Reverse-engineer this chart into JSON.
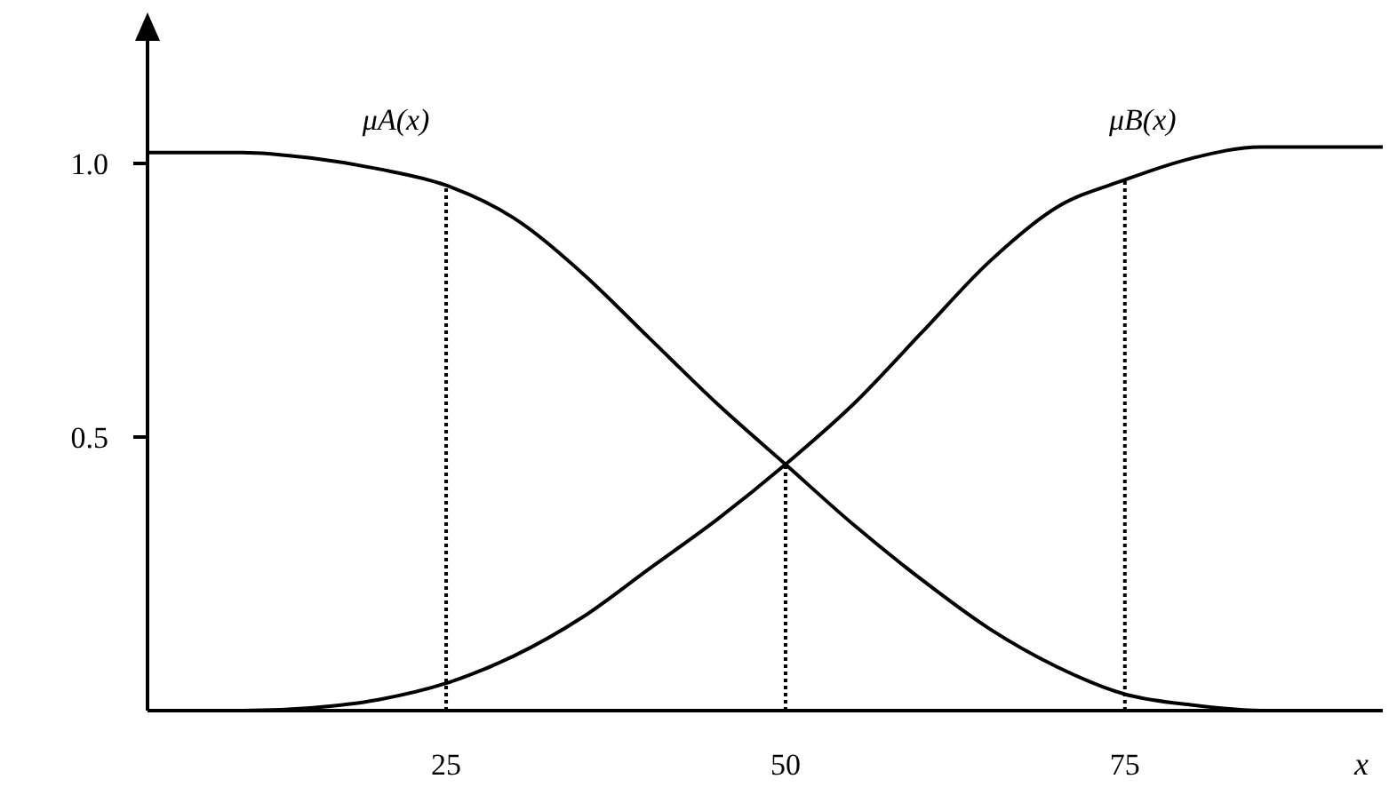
{
  "chart_data": {
    "type": "line",
    "xlabel": "x",
    "x": [
      3,
      10,
      15,
      20,
      25,
      30,
      35,
      40,
      45,
      50,
      55,
      60,
      65,
      70,
      75,
      80,
      85,
      94
    ],
    "series": [
      {
        "name": "μA(x)",
        "color": "#000000",
        "values": [
          1.02,
          1.02,
          1.01,
          0.99,
          0.96,
          0.9,
          0.8,
          0.68,
          0.56,
          0.45,
          0.34,
          0.24,
          0.15,
          0.08,
          0.03,
          0.01,
          0,
          0
        ]
      },
      {
        "name": "μB(x)",
        "color": "#000000",
        "values": [
          0,
          0,
          0.005,
          0.02,
          0.05,
          0.1,
          0.17,
          0.26,
          0.35,
          0.45,
          0.56,
          0.69,
          0.82,
          0.92,
          0.97,
          1.01,
          1.03,
          1.03
        ]
      }
    ],
    "xlim": [
      3,
      94
    ],
    "xticks": [
      25,
      50,
      75
    ],
    "ylim": [
      0,
      1.25
    ],
    "yticks": [
      {
        "value": 0.5,
        "label": "0.5"
      },
      {
        "value": 1,
        "label": "1.0"
      }
    ],
    "ref_lines": [
      {
        "axis": "x",
        "value": 25,
        "line_style": "dotted"
      },
      {
        "axis": "x",
        "value": 50,
        "line_style": "dotted"
      },
      {
        "axis": "x",
        "value": 75,
        "line_style": "dotted"
      }
    ],
    "grid": false,
    "legend": false,
    "marker": "none",
    "line_style": "solid"
  }
}
